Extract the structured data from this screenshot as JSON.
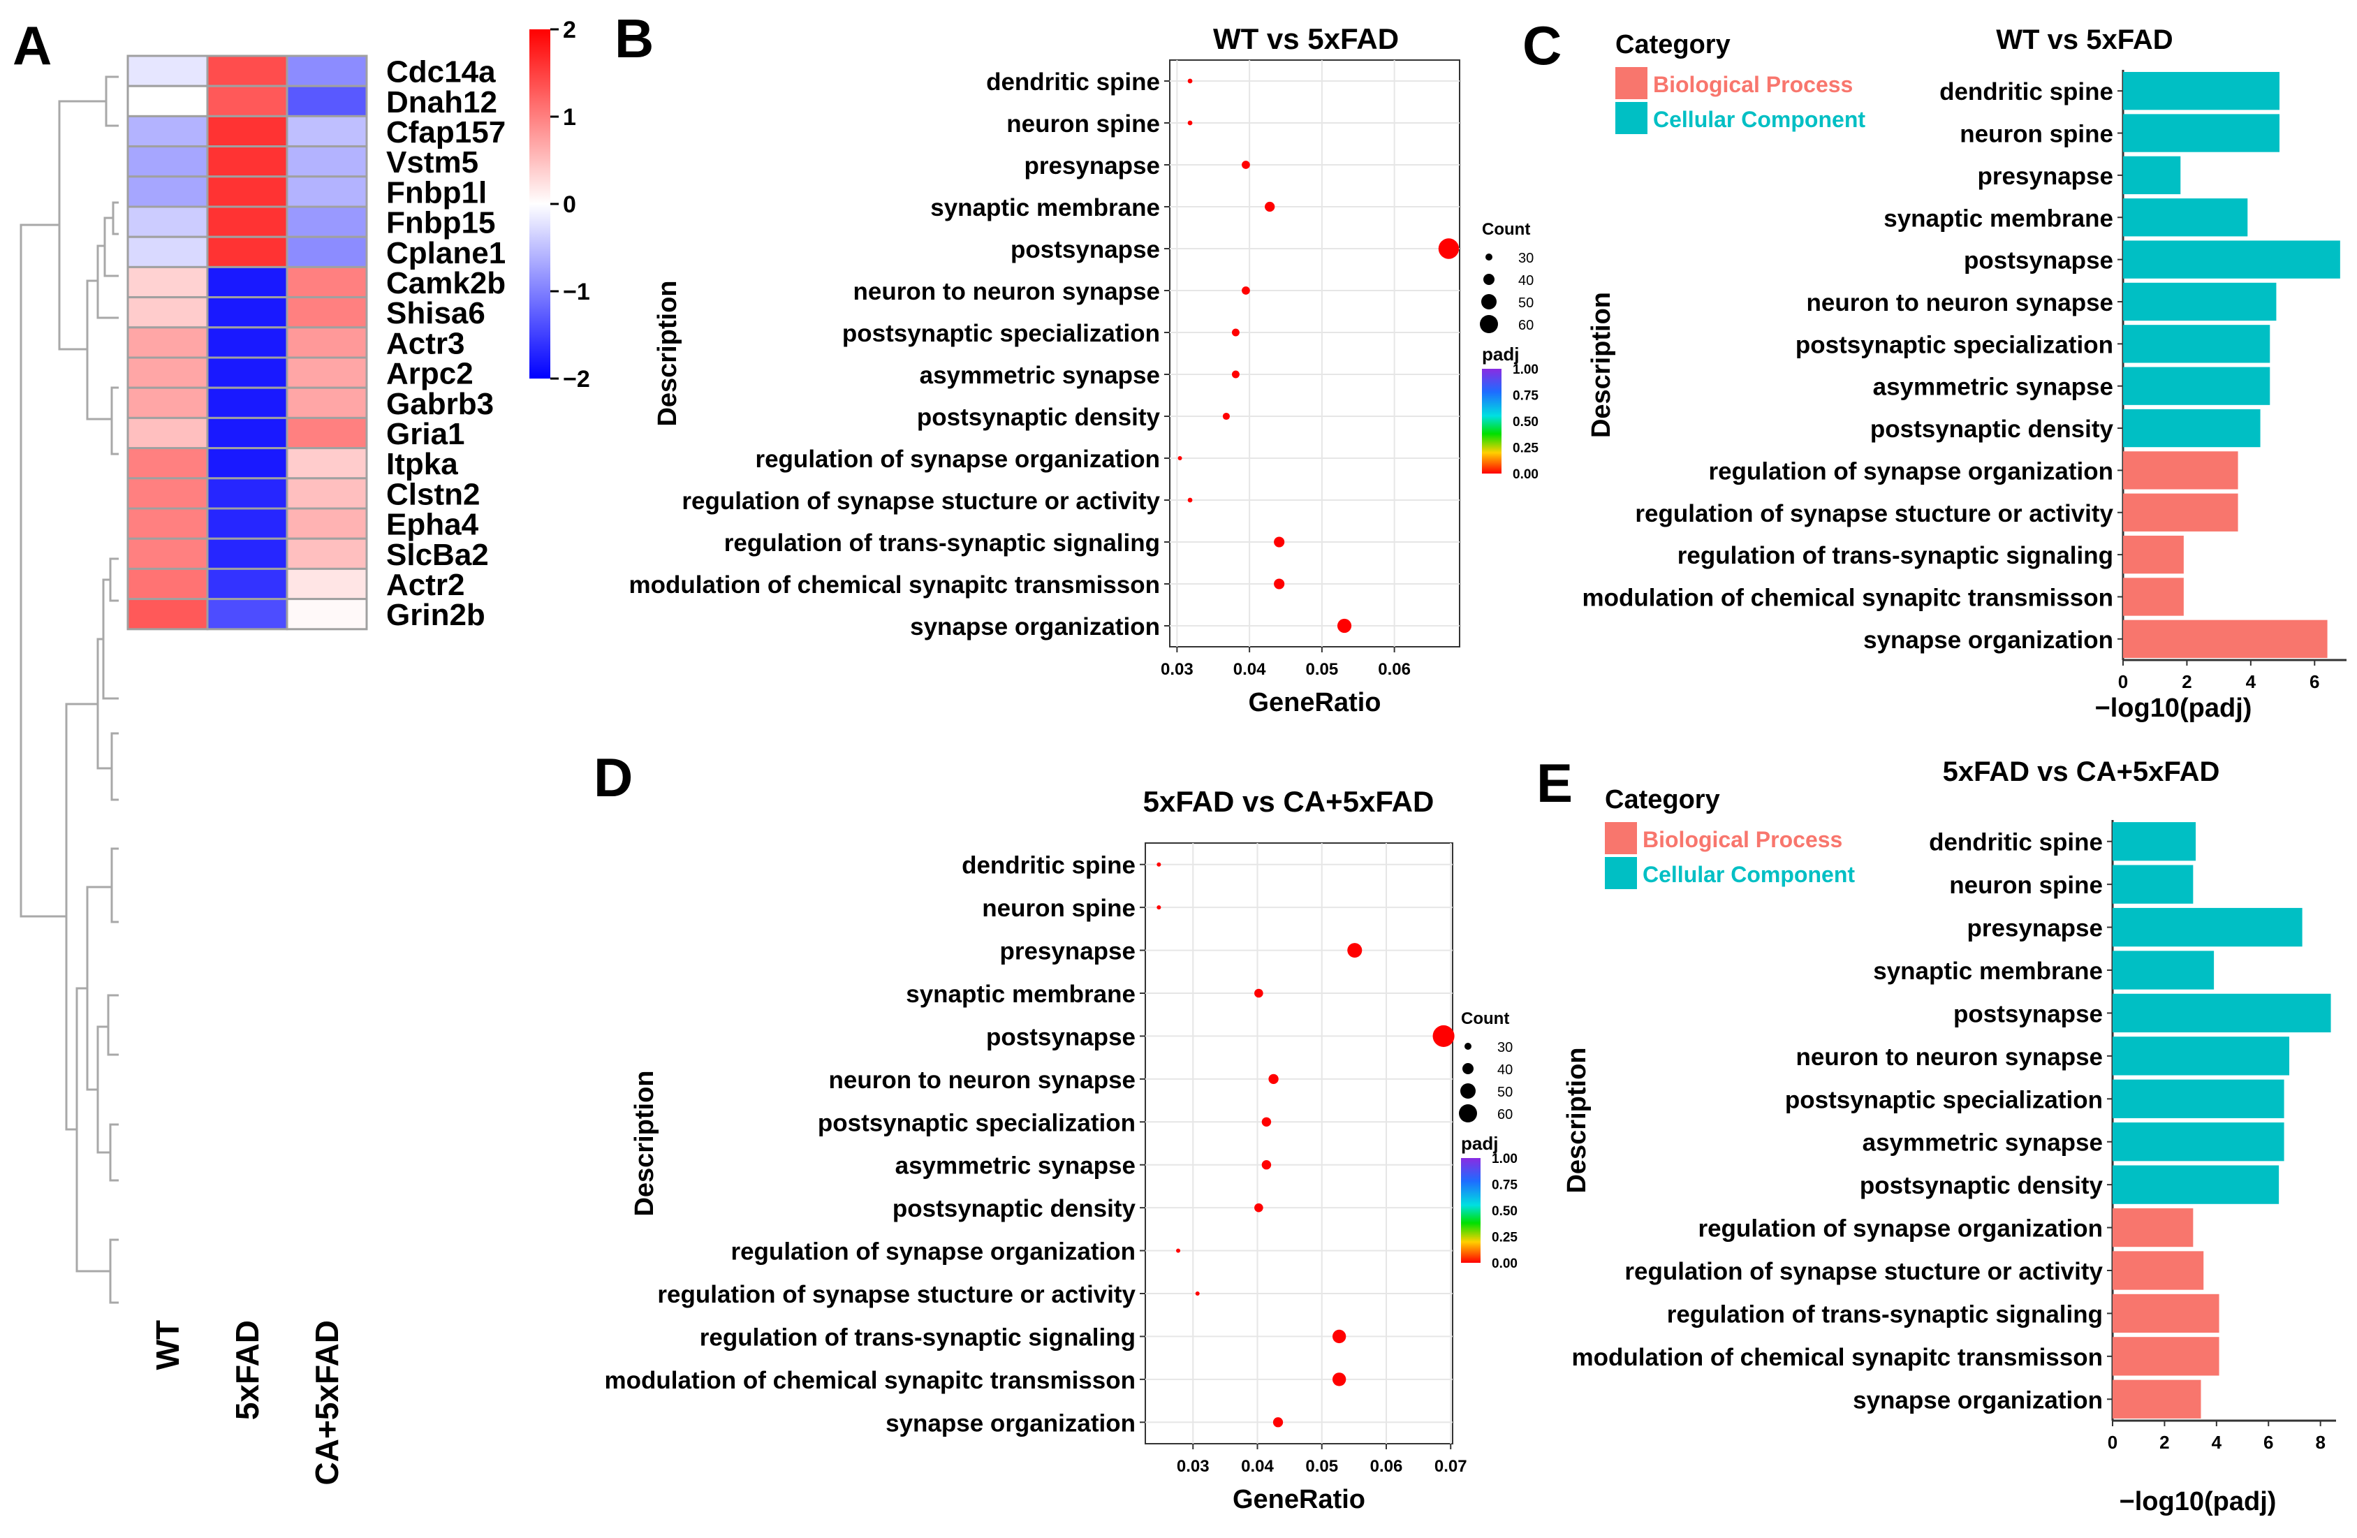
{
  "chart_data": [
    {
      "id": "A",
      "type": "heatmap",
      "panel_label": "A",
      "columns": [
        "WT",
        "5xFAD",
        "CA+5xFAD"
      ],
      "rows": [
        "Cdc14a",
        "Dnah12",
        "Cfap157",
        "Vstm5",
        "Fnbp1l",
        "Fnbp15",
        "Cplane1",
        "Camk2b",
        "Shisa6",
        "Actr3",
        "Arpc2",
        "Gabrb3",
        "Gria1",
        "Itpka",
        "Clstn2",
        "Epha4",
        "SlcBa2",
        "Actr2",
        "Grin2b"
      ],
      "values": [
        [
          -0.2,
          1.4,
          -0.9
        ],
        [
          0.0,
          1.3,
          -1.3
        ],
        [
          -0.6,
          1.6,
          -0.5
        ],
        [
          -0.7,
          1.6,
          -0.6
        ],
        [
          -0.7,
          1.6,
          -0.6
        ],
        [
          -0.4,
          1.6,
          -0.8
        ],
        [
          -0.3,
          1.6,
          -0.9
        ],
        [
          0.35,
          -1.8,
          1.0
        ],
        [
          0.4,
          -1.8,
          1.0
        ],
        [
          0.7,
          -1.8,
          0.8
        ],
        [
          0.7,
          -1.8,
          0.7
        ],
        [
          0.7,
          -1.8,
          0.7
        ],
        [
          0.5,
          -1.8,
          1.0
        ],
        [
          1.0,
          -1.8,
          0.4
        ],
        [
          1.0,
          -1.7,
          0.5
        ],
        [
          1.0,
          -1.7,
          0.6
        ],
        [
          1.0,
          -1.7,
          0.5
        ],
        [
          1.1,
          -1.6,
          0.2
        ],
        [
          1.3,
          -1.4,
          0.05
        ]
      ],
      "color_scale": {
        "min": -2,
        "max": 2,
        "low": "#0000ff",
        "mid": "#ffffff",
        "high": "#ff0000",
        "ticks": [
          "2",
          "1",
          "0",
          "−1",
          "−2"
        ]
      }
    },
    {
      "id": "B",
      "type": "scatter",
      "panel_label": "B",
      "title": "WT vs 5xFAD",
      "xlabel": "GeneRatio",
      "ylabel": "Description",
      "xlim": [
        0.029,
        0.069
      ],
      "xticks": [
        "0.03",
        "0.04",
        "0.05",
        "0.06"
      ],
      "categories": [
        "dendritic  spine",
        "neuron  spine",
        "presynapse",
        "synaptic membrane",
        "postsynapse",
        "neuron to neuron synapse",
        "postsynaptic specialization",
        "asymmetric synapse",
        "postsynaptic density",
        "regulation of synapse organization",
        "regulation of synapse stucture or activity",
        "regulation of trans-synaptic signaling",
        "modulation of chemical synapitc transmisson",
        "synapse organization"
      ],
      "x": [
        0.0318,
        0.0318,
        0.0395,
        0.0428,
        0.0675,
        0.0395,
        0.0381,
        0.0381,
        0.0368,
        0.0304,
        0.0318,
        0.0441,
        0.0441,
        0.0531
      ],
      "count": [
        23,
        23,
        29,
        32,
        50,
        29,
        28,
        28,
        27,
        22,
        23,
        33,
        33,
        39
      ],
      "legend_count_title": "Count",
      "legend_count_labels": [
        "30",
        "40",
        "50",
        "60"
      ],
      "legend_padj_title": "padj",
      "legend_padj_labels": [
        "1.00",
        "0.75",
        "0.50",
        "0.25",
        "0.00"
      ]
    },
    {
      "id": "C",
      "type": "bar",
      "panel_label": "C",
      "title": "WT vs 5xFAD",
      "xlabel": "−log10(padj)",
      "ylabel": "Description",
      "xlim": [
        0,
        7
      ],
      "xticks": [
        "0",
        "2",
        "4",
        "6"
      ],
      "legend_title": "Category",
      "legend_items": [
        "Biological Process",
        "Cellular Component"
      ],
      "categories": [
        "dendritic  spine",
        "neuron  spine",
        "presynapse",
        "synaptic membrane",
        "postsynapse",
        "neuron to neuron synapse",
        "postsynaptic specialization",
        "asymmetric synapse",
        "postsynaptic density",
        "regulation of synapse organization",
        "regulation of synapse stucture or activity",
        "regulation of trans-synaptic signaling",
        "modulation of chemical synapitc transmisson",
        "synapse organization"
      ],
      "values": [
        4.9,
        4.9,
        1.8,
        3.9,
        6.8,
        4.8,
        4.6,
        4.6,
        4.3,
        3.6,
        3.6,
        1.9,
        1.9,
        6.4
      ],
      "category": [
        "CC",
        "CC",
        "CC",
        "CC",
        "CC",
        "CC",
        "CC",
        "CC",
        "CC",
        "BP",
        "BP",
        "BP",
        "BP",
        "BP"
      ]
    },
    {
      "id": "D",
      "type": "scatter",
      "panel_label": "D",
      "title": "5xFAD vs  CA+5xFAD",
      "xlabel": "GeneRatio",
      "ylabel": "Description",
      "xlim": [
        0.0226,
        0.0703
      ],
      "xticks": [
        "0.03",
        "0.04",
        "0.05",
        "0.06",
        "0.07"
      ],
      "categories": [
        "dendritic  spine",
        "neuron  spine",
        "presynapse",
        "synaptic membrane",
        "postsynapse",
        "neuron to neuron synapse",
        "postsynaptic specialization",
        "asymmetric synapse",
        "postsynaptic density",
        "regulation of synapse organization",
        "regulation of synapse stucture or activity",
        "regulation of trans-synaptic signaling",
        "modulation of chemical synapitc transmisson",
        "synapse organization"
      ],
      "x": [
        0.0247,
        0.0247,
        0.0551,
        0.0402,
        0.0689,
        0.0425,
        0.0414,
        0.0414,
        0.0402,
        0.0277,
        0.0307,
        0.0527,
        0.0527,
        0.0432
      ],
      "count": [
        18,
        18,
        40,
        30,
        52,
        32,
        31,
        31,
        30,
        20,
        22,
        38,
        38,
        32
      ],
      "legend_count_title": "Count",
      "legend_count_labels": [
        "30",
        "40",
        "50",
        "60"
      ],
      "legend_padj_title": "padj",
      "legend_padj_labels": [
        "1.00",
        "0.75",
        "0.50",
        "0.25",
        "0.00"
      ]
    },
    {
      "id": "E",
      "type": "bar",
      "panel_label": "E",
      "title": "5xFAD vs  CA+5xFAD",
      "xlabel": "−log10(padj)",
      "ylabel": "Description",
      "xlim": [
        0,
        8.6
      ],
      "xticks": [
        "0",
        "2",
        "4",
        "6",
        "8"
      ],
      "legend_title": "Category",
      "legend_items": [
        "Biological Process",
        "Cellular Component"
      ],
      "categories": [
        "dendritic  spine",
        "neuron  spine",
        "presynapse",
        "synaptic membrane",
        "postsynapse",
        "neuron to neuron synapse",
        "postsynaptic specialization",
        "asymmetric synapse",
        "postsynaptic density",
        "regulation of synapse organization",
        "regulation of synapse stucture or activity",
        "regulation of trans-synaptic signaling",
        "modulation of chemical synapitc transmisson",
        "synapse organization"
      ],
      "values": [
        3.2,
        3.1,
        7.3,
        3.9,
        8.4,
        6.8,
        6.6,
        6.6,
        6.4,
        3.1,
        3.5,
        4.1,
        4.1,
        3.4
      ],
      "category": [
        "CC",
        "CC",
        "CC",
        "CC",
        "CC",
        "CC",
        "CC",
        "CC",
        "CC",
        "BP",
        "BP",
        "BP",
        "BP",
        "BP"
      ]
    }
  ],
  "colors": {
    "biological_process": "#f8766d",
    "cellular_component": "#00bfc4",
    "dot": "#ff0000",
    "legend_text_bp": "#f8766d",
    "legend_text_cc": "#00bfc4"
  }
}
